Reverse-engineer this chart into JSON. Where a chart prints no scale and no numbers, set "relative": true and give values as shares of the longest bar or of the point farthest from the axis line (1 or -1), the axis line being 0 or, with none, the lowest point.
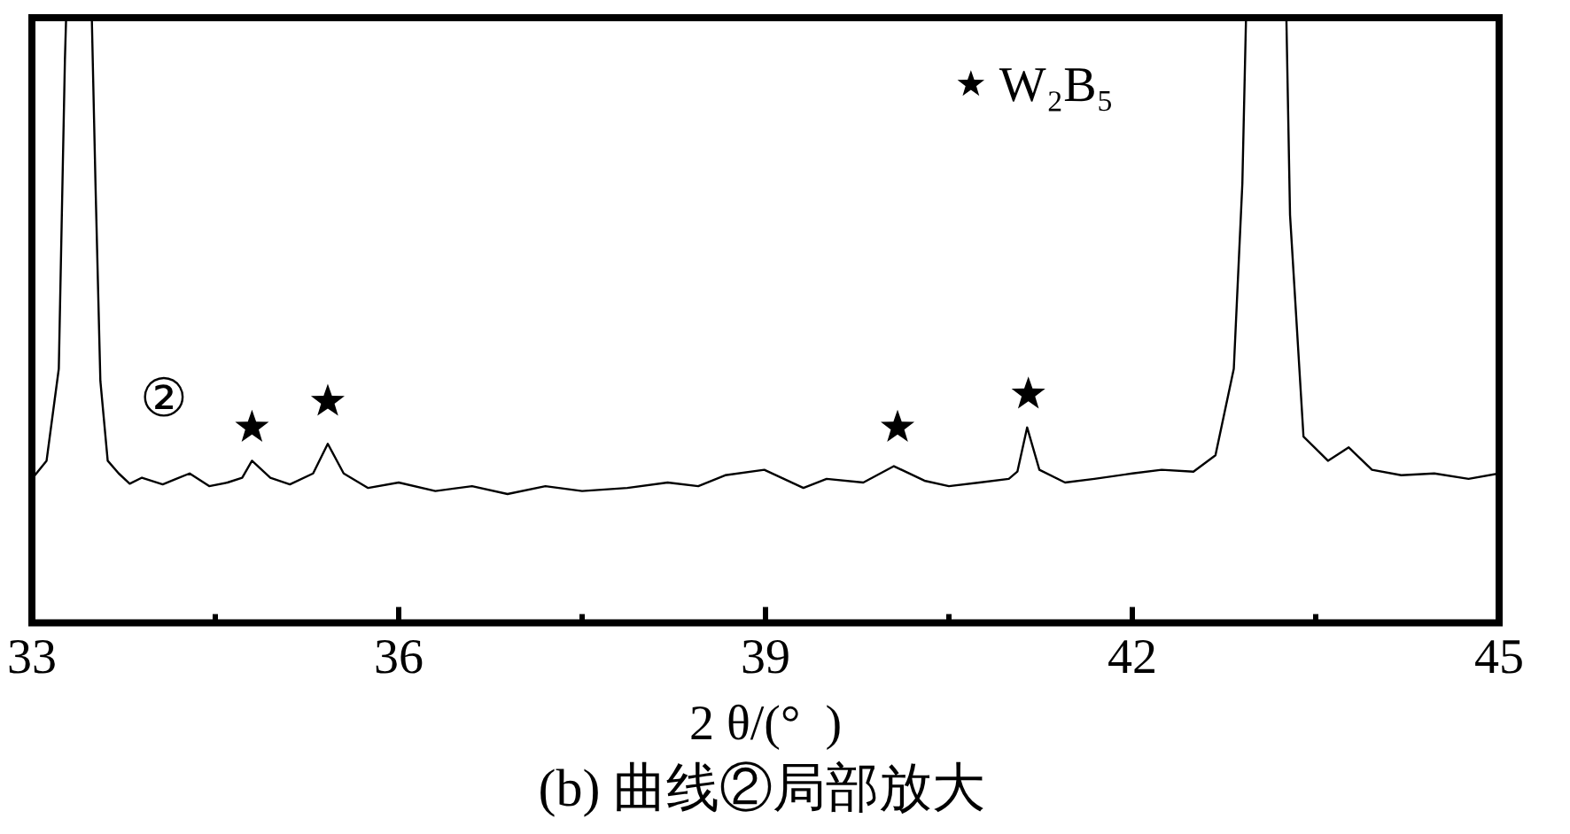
{
  "chart_data": {
    "type": "line",
    "title": "(b) 曲线②局部放大",
    "xlabel": "2 θ/(°  )",
    "relative": true,
    "xlim": [
      33,
      45
    ],
    "xticks": [
      33,
      {
        "value": 34.5,
        "label": null
      },
      36,
      {
        "value": 37.5,
        "label": null
      },
      39,
      {
        "value": 40.5,
        "label": null
      },
      42,
      {
        "value": 43.5,
        "label": null
      },
      45
    ],
    "legend": "top right",
    "grid": false,
    "series": [
      {
        "name": "②",
        "color": "#000000",
        "marker": "none",
        "line_style": "solid",
        "x": [
          33.0,
          33.12,
          33.22,
          33.27,
          33.28,
          33.49,
          33.52,
          33.56,
          33.62,
          33.71,
          33.8,
          33.9,
          34.07,
          34.18,
          34.29,
          34.45,
          34.6,
          34.72,
          34.8,
          34.95,
          35.11,
          35.3,
          35.42,
          35.55,
          35.75,
          36.0,
          36.3,
          36.6,
          36.89,
          37.2,
          37.5,
          37.87,
          38.2,
          38.45,
          38.67,
          38.99,
          39.31,
          39.5,
          39.8,
          40.05,
          40.3,
          40.5,
          40.75,
          40.99,
          41.06,
          41.14,
          41.24,
          41.45,
          41.69,
          42.0,
          42.24,
          42.5,
          42.68,
          42.83,
          42.9,
          42.93,
          43.26,
          43.29,
          43.4,
          43.6,
          43.77,
          43.96,
          44.2,
          44.47,
          44.75,
          45.0
        ],
        "values": [
          0.238,
          0.268,
          0.42,
          0.93,
          1,
          1,
          0.726,
          0.4,
          0.268,
          0.247,
          0.23,
          0.24,
          0.229,
          0.238,
          0.247,
          0.226,
          0.232,
          0.24,
          0.268,
          0.24,
          0.229,
          0.247,
          0.296,
          0.247,
          0.223,
          0.232,
          0.218,
          0.226,
          0.213,
          0.226,
          0.218,
          0.223,
          0.232,
          0.226,
          0.244,
          0.253,
          0.223,
          0.238,
          0.232,
          0.259,
          0.235,
          0.226,
          0.232,
          0.238,
          0.25,
          0.323,
          0.253,
          0.232,
          0.238,
          0.247,
          0.253,
          0.25,
          0.277,
          0.42,
          0.726,
          1,
          1,
          0.674,
          0.308,
          0.268,
          0.29,
          0.253,
          0.244,
          0.247,
          0.238,
          0.247
        ]
      },
      {
        "name": "W₂B₅",
        "type": "scatter",
        "color": "#000000",
        "marker": "star",
        "x": [
          34.8,
          35.42,
          40.08,
          41.15
        ],
        "values": [
          0.323,
          0.366,
          0.323,
          0.378
        ]
      }
    ]
  }
}
